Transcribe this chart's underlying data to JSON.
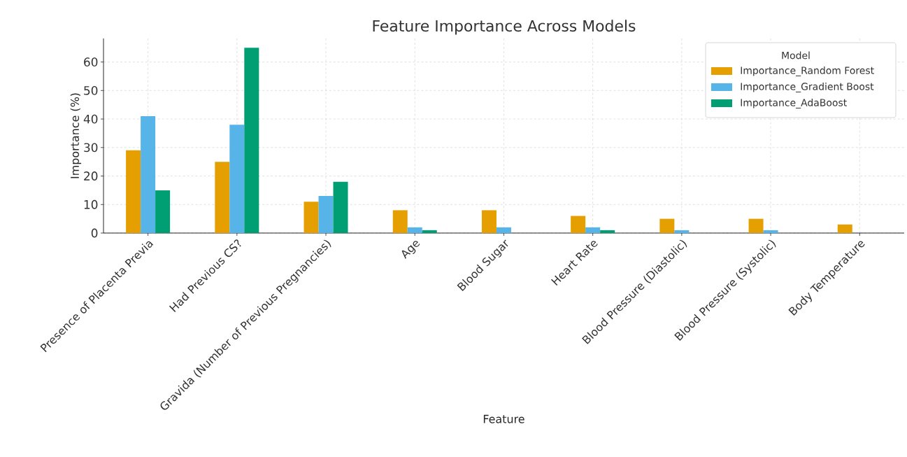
{
  "chart_data": {
    "type": "bar",
    "title": "Feature Importance Across Models",
    "xlabel": "Feature",
    "ylabel": "Importance (%)",
    "legend_title": "Model",
    "categories": [
      "Presence of Placenta Previa",
      "Had Previous CS?",
      "Gravida (Number of Previous Pregnancies)",
      "Age",
      "Blood Sugar",
      "Heart Rate",
      "Blood Pressure (Diastolic)",
      "Blood Pressure (Systolic)",
      "Body Temperature"
    ],
    "series": [
      {
        "name": "Importance_Random Forest",
        "color": "#e69f00",
        "values": [
          29,
          25,
          11,
          8,
          8,
          6,
          5,
          5,
          3
        ]
      },
      {
        "name": "Importance_Gradient Boost",
        "color": "#56b4e9",
        "values": [
          41,
          38,
          13,
          2,
          2,
          2,
          1,
          1,
          0
        ]
      },
      {
        "name": "Importance_AdaBoost",
        "color": "#009e73",
        "values": [
          15,
          65,
          18,
          1,
          0,
          1,
          0,
          0,
          0
        ]
      }
    ],
    "ylim": [
      0,
      68.25
    ],
    "yticks": [
      0,
      10,
      20,
      30,
      40,
      50,
      60
    ],
    "grid": true,
    "legend": "top right"
  }
}
